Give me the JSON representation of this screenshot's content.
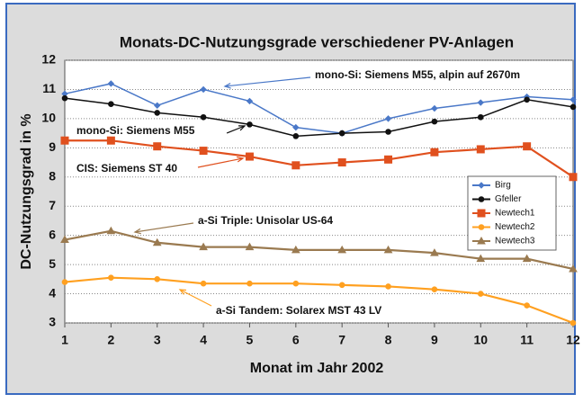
{
  "chart_data": {
    "type": "line",
    "title": "Monats-DC-Nutzungsgrade verschiedener PV-Anlagen",
    "xlabel": "Monat im Jahr 2002",
    "ylabel": "DC-Nutzungsgrad in %",
    "x": [
      1,
      2,
      3,
      4,
      5,
      6,
      7,
      8,
      9,
      10,
      11,
      12
    ],
    "xlim": [
      1,
      12
    ],
    "xticks": [
      1,
      2,
      3,
      4,
      5,
      6,
      7,
      8,
      9,
      10,
      11,
      12
    ],
    "ylim": [
      3,
      12
    ],
    "yticks": [
      3,
      4,
      5,
      6,
      7,
      8,
      9,
      10,
      11,
      12
    ],
    "grid": true,
    "legend": "right",
    "series": [
      {
        "name": "Birg",
        "color": "#4a78c8",
        "marker": "diamond",
        "values": [
          10.85,
          11.2,
          10.45,
          11.0,
          10.6,
          9.7,
          9.5,
          10.0,
          10.35,
          10.55,
          10.75,
          10.65
        ]
      },
      {
        "name": "Gfeller",
        "color": "#111111",
        "marker": "circle",
        "values": [
          10.7,
          10.5,
          10.2,
          10.05,
          9.8,
          9.4,
          9.5,
          9.55,
          9.9,
          10.05,
          10.65,
          10.4
        ]
      },
      {
        "name": "Newtech1",
        "color": "#e0501e",
        "marker": "square",
        "values": [
          9.25,
          9.25,
          9.05,
          8.9,
          8.7,
          8.4,
          8.5,
          8.6,
          8.85,
          8.95,
          9.05,
          8.0
        ]
      },
      {
        "name": "Newtech2",
        "color": "#ffa020",
        "marker": "circle",
        "values": [
          4.4,
          4.55,
          4.5,
          4.35,
          4.35,
          4.35,
          4.3,
          4.25,
          4.15,
          4.0,
          3.6,
          3.0
        ]
      },
      {
        "name": "Newtech3",
        "color": "#9a7a50",
        "marker": "triangle",
        "values": [
          5.85,
          6.15,
          5.75,
          5.6,
          5.6,
          5.5,
          5.5,
          5.5,
          5.4,
          5.2,
          5.2,
          4.85
        ]
      }
    ],
    "annotations": [
      "mono-Si: Siemens M55, alpin auf 2670m",
      "mono-Si: Siemens M55",
      "CIS: Siemens ST 40",
      "a-Si Triple: Unisolar US-64",
      "a-Si Tandem: Solarex  MST 43 LV"
    ]
  }
}
